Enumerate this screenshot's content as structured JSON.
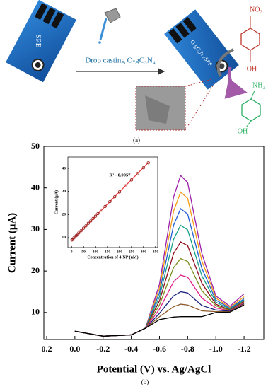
{
  "figure_a": {
    "spe_label": "SPE",
    "arrow_label": "Drop casting O-gC₃N₄",
    "modified_label": "O-gC₃N₄/SPE",
    "reactant_group": "NO₂",
    "reactant_oh": "OH",
    "product_group": "NH₂",
    "product_oh": "OH",
    "caption": "(a)"
  },
  "caption_b": "(b)",
  "chart_data": [
    {
      "type": "line",
      "xlabel": "Potential (V) vs. Ag/AgCl",
      "ylabel": "Current (μA)",
      "x": [
        0,
        -0.2,
        -0.4,
        -0.5,
        -0.6,
        -0.65,
        -0.7,
        -0.75,
        -0.8,
        -0.9,
        -1.0,
        -1.1,
        -1.2
      ],
      "xlim": [
        0.22,
        -1.34
      ],
      "xticks": [
        0.2,
        {
          "value": 0,
          "label": "0.0"
        },
        -0.2,
        -0.4,
        -0.6,
        -0.8,
        {
          "value": -1,
          "label": "-1.0"
        },
        -1.2
      ],
      "ylim": [
        3.5,
        50
      ],
      "yticks": [
        10,
        20,
        30,
        40,
        50
      ],
      "series": [
        {
          "color": "#9b1fa8",
          "values": [
            5.5,
            4.3,
            4.6,
            6.2,
            16.8,
            27.3,
            37.8,
            43,
            41.3,
            24.3,
            14.0,
            11.5,
            14.5
          ]
        },
        {
          "color": "#f39c12",
          "values": [
            5.5,
            4.3,
            4.6,
            6.2,
            15.8,
            25.1,
            34.4,
            39,
            37.5,
            22.5,
            13.5,
            11.2,
            13.8
          ]
        },
        {
          "color": "#1f5fd1",
          "values": [
            5.5,
            4.3,
            4.6,
            6.2,
            14.8,
            22.9,
            31.0,
            35,
            33.7,
            20.7,
            13.0,
            11.0,
            13.3
          ]
        },
        {
          "color": "#16a085",
          "values": [
            5.5,
            4.3,
            4.6,
            6.2,
            13.8,
            20.7,
            27.6,
            31,
            29.9,
            18.9,
            12.5,
            10.8,
            13.0
          ]
        },
        {
          "color": "#8b0a1a",
          "values": [
            5.5,
            4.3,
            4.6,
            6.2,
            12.8,
            18.5,
            24.2,
            27,
            26.1,
            17.1,
            12.0,
            10.6,
            12.7
          ]
        },
        {
          "color": "#7b8d1e",
          "values": [
            5.5,
            4.3,
            4.6,
            6.2,
            11.8,
            16.3,
            20.8,
            23,
            22.3,
            15.3,
            11.6,
            10.5,
            12.5
          ]
        },
        {
          "color": "#e0218a",
          "values": [
            5.5,
            4.3,
            4.6,
            6.2,
            10.8,
            14.1,
            17.4,
            19,
            18.5,
            13.5,
            11.1,
            10.4,
            12.3
          ]
        },
        {
          "color": "#1a237e",
          "values": [
            5.5,
            4.3,
            4.6,
            6.2,
            9.8,
            11.9,
            14.0,
            15,
            14.7,
            11.7,
            10.6,
            10.3,
            12.1
          ]
        },
        {
          "color": "#8e5a2b",
          "values": [
            5.5,
            4.3,
            4.6,
            6.2,
            9.0,
            10.2,
            11.4,
            12,
            11.8,
            10.4,
            10.2,
            10.2,
            12.0
          ]
        },
        {
          "color": "#000000",
          "values": [
            5.5,
            4.3,
            4.6,
            6.2,
            8.3,
            8.6,
            8.9,
            9,
            9.0,
            9.0,
            10.0,
            10.1,
            11.8
          ]
        }
      ]
    },
    {
      "type": "scatter",
      "xlabel": "Concentration of 4-NP (nM)",
      "ylabel": "Current (μA)",
      "annotation": "R² - 0.9957",
      "x": [
        2,
        5,
        10,
        15,
        20,
        25,
        30,
        40,
        50,
        60,
        70,
        80,
        90,
        100,
        110,
        125,
        140,
        160,
        180,
        200,
        225,
        250,
        275,
        300,
        320
      ],
      "values": [
        9.0,
        9.3,
        9.9,
        10.4,
        10.9,
        11.4,
        12.0,
        13.0,
        14.1,
        15.1,
        16.2,
        17.2,
        18.3,
        19.3,
        20.4,
        21.9,
        23.5,
        25.6,
        27.7,
        29.8,
        32.4,
        35.0,
        37.7,
        40.3,
        42.4
      ],
      "color": "#8b1a1a",
      "fit_line": {
        "color": "#e53935",
        "x": [
          0,
          320
        ],
        "values": [
          8.7,
          42.5
        ]
      },
      "xlim": [
        -15,
        359
      ],
      "xticks": [
        0,
        50,
        100,
        150,
        200,
        250,
        300,
        350
      ],
      "ylim": [
        5.7,
        44.9
      ],
      "yticks": [
        10,
        20,
        30,
        40
      ]
    }
  ]
}
